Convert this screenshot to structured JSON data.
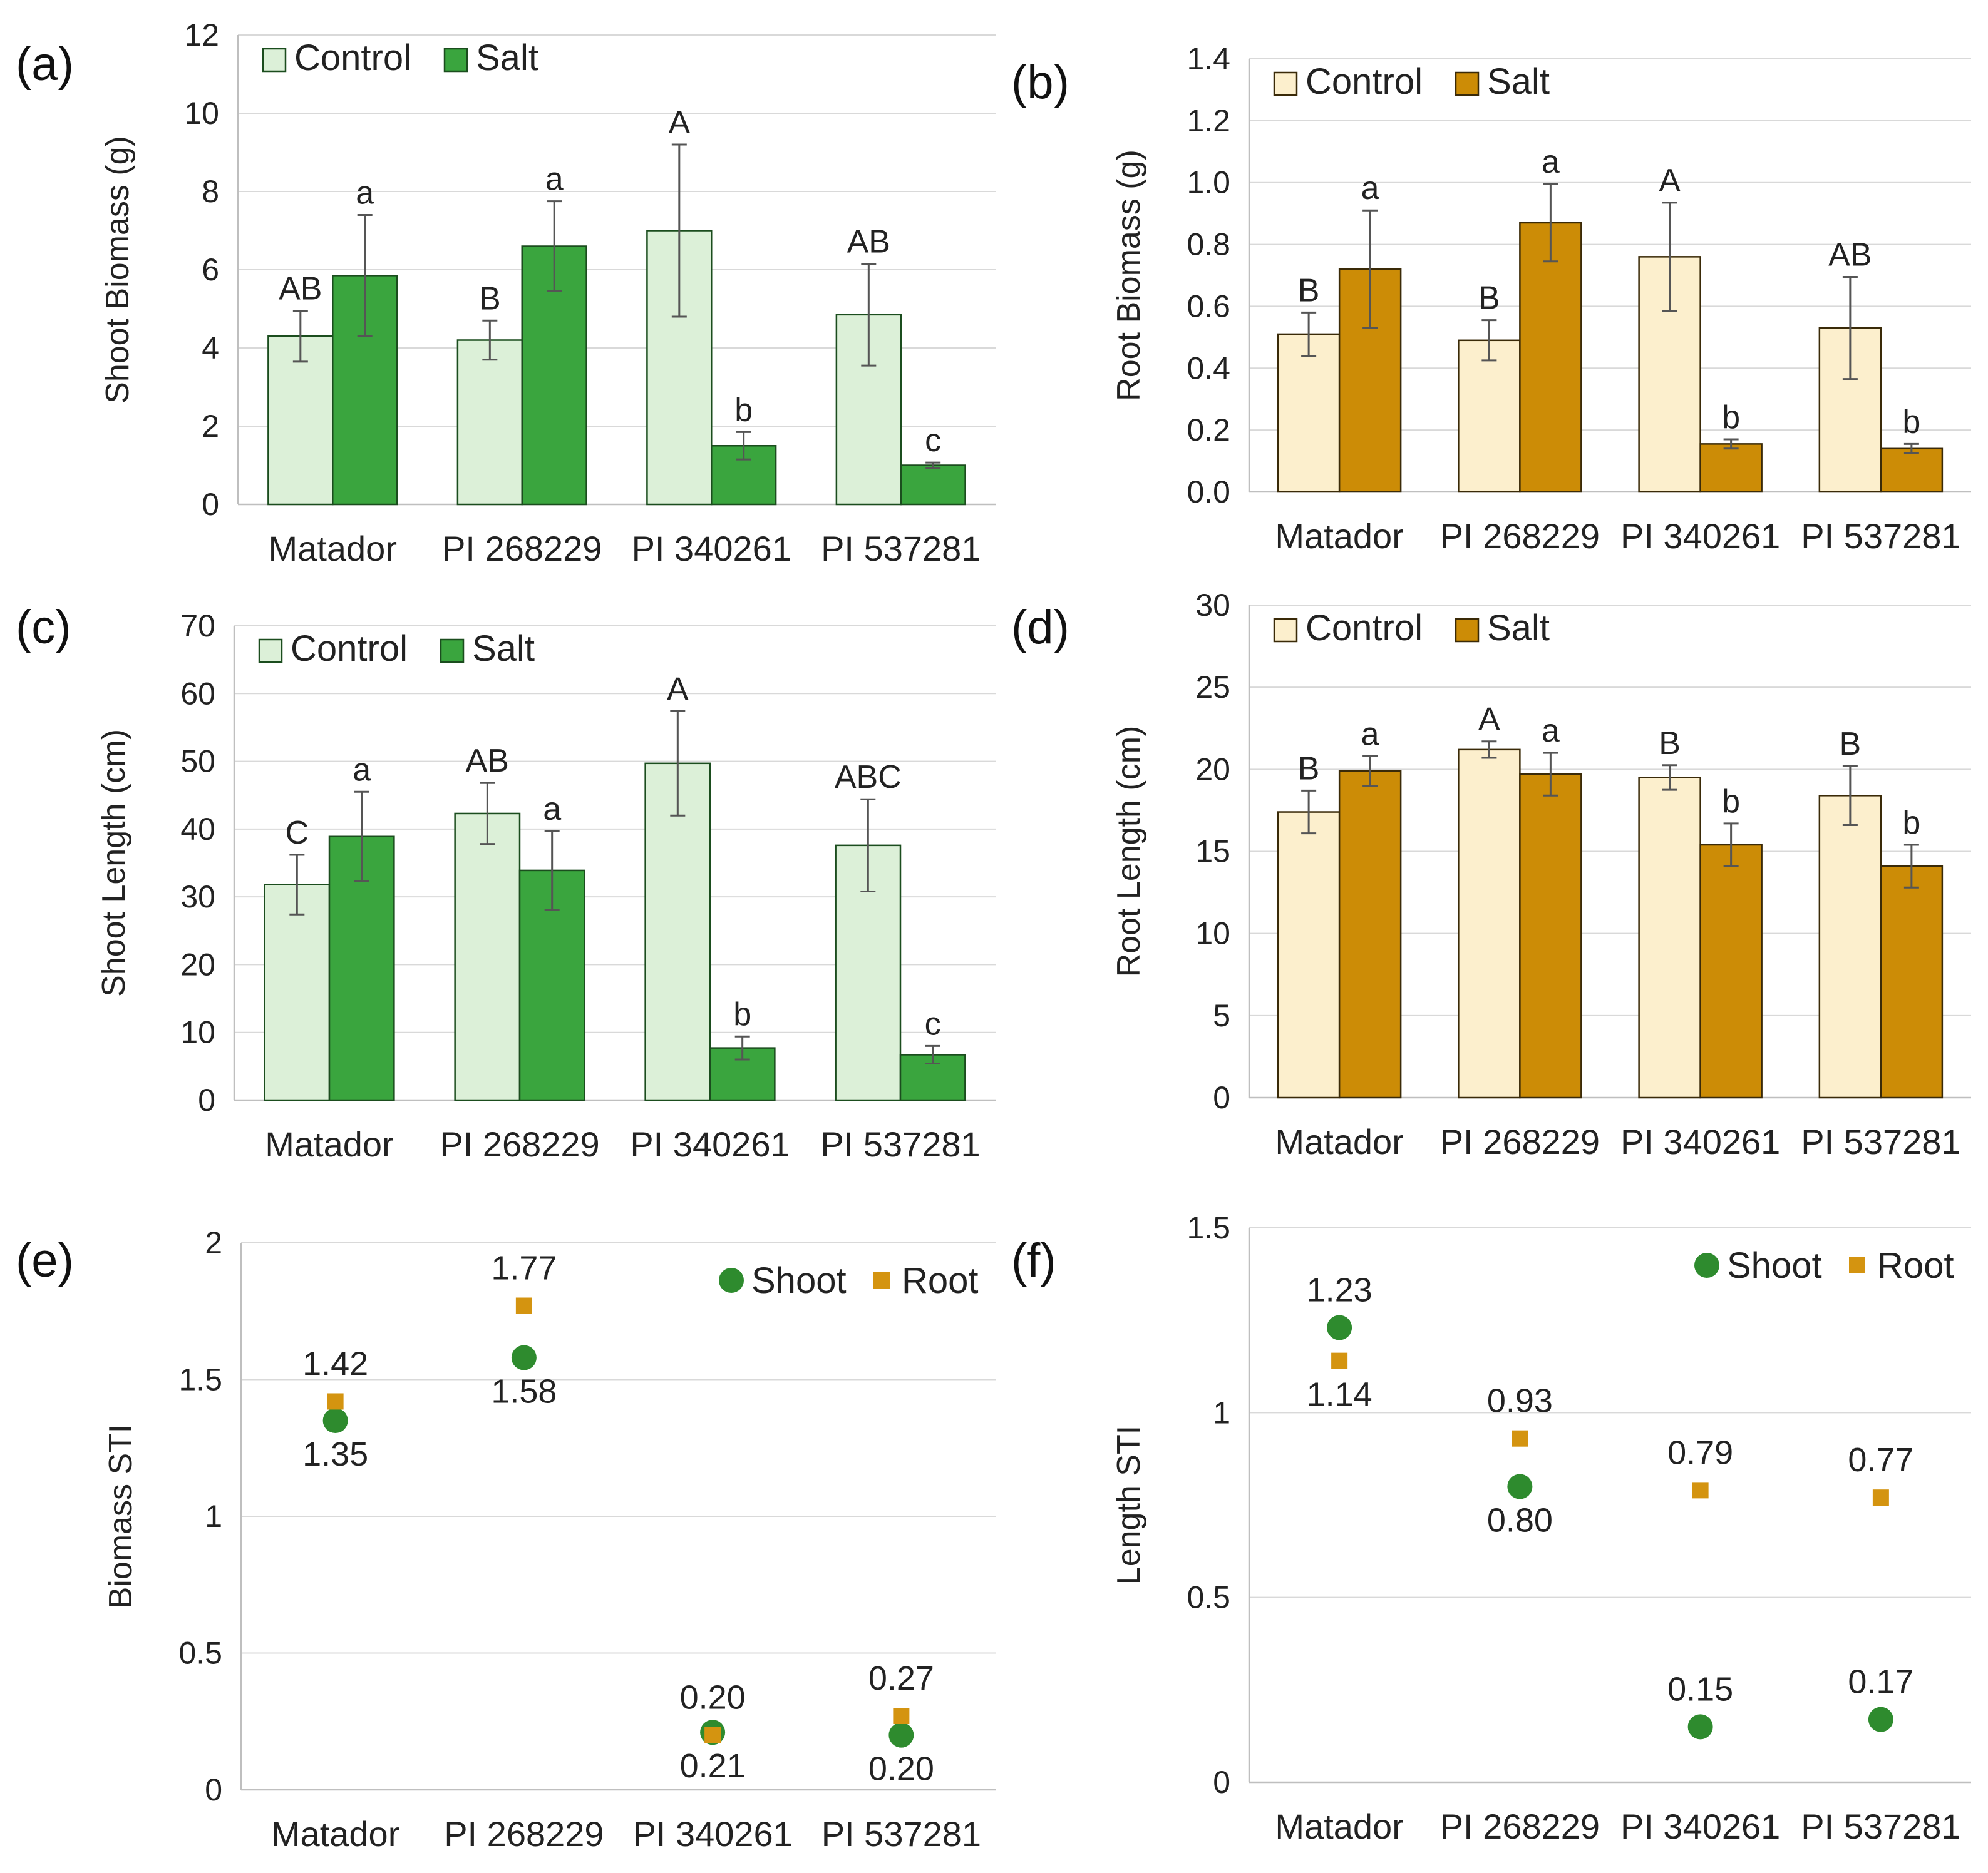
{
  "colors": {
    "shoot_control": "#dcf0d8",
    "shoot_salt": "#3aa53e",
    "shoot_border": "#1b4d1e",
    "root_control": "#fcefcd",
    "root_salt": "#cc8c06",
    "root_border": "#3a2a08",
    "shoot_marker": "#2e8b2e",
    "root_marker": "#d49410",
    "grid": "#d9d9d9",
    "error_bar": "#555555"
  },
  "chart_data": [
    {
      "id": "a",
      "panel_label": "(a)",
      "type": "bar",
      "theme": "shoot",
      "ylabel": "Shoot Biomass (g)",
      "ylim": [
        0,
        12
      ],
      "yticks": [
        "0",
        "2",
        "4",
        "6",
        "8",
        "10",
        "12"
      ],
      "ytick_values": [
        0,
        2,
        4,
        6,
        8,
        10,
        12
      ],
      "categories": [
        "Matador",
        "PI 268229",
        "PI 340261",
        "PI 537281"
      ],
      "legend_position": "top-left",
      "series": [
        {
          "name": "Control",
          "values": [
            4.3,
            4.2,
            7.0,
            4.85
          ],
          "errors": [
            0.65,
            0.5,
            2.2,
            1.3
          ],
          "letters": [
            "AB",
            "B",
            "A",
            "AB"
          ]
        },
        {
          "name": "Salt",
          "values": [
            5.85,
            6.6,
            1.5,
            1.0
          ],
          "errors": [
            1.55,
            1.15,
            0.35,
            0.07
          ],
          "letters": [
            "a",
            "a",
            "b",
            "c"
          ]
        }
      ]
    },
    {
      "id": "b",
      "panel_label": "(b)",
      "type": "bar",
      "theme": "root",
      "ylabel": "Root Biomass (g)",
      "ylim": [
        0,
        1.4
      ],
      "yticks": [
        "0.0",
        "0.2",
        "0.4",
        "0.6",
        "0.8",
        "1.0",
        "1.2",
        "1.4"
      ],
      "ytick_values": [
        0,
        0.2,
        0.4,
        0.6,
        0.8,
        1.0,
        1.2,
        1.4
      ],
      "categories": [
        "Matador",
        "PI 268229",
        "PI 340261",
        "PI 537281"
      ],
      "legend_position": "top-left",
      "series": [
        {
          "name": "Control",
          "values": [
            0.51,
            0.49,
            0.76,
            0.53
          ],
          "errors": [
            0.07,
            0.065,
            0.175,
            0.165
          ],
          "letters": [
            "B",
            "B",
            "A",
            "AB"
          ]
        },
        {
          "name": "Salt",
          "values": [
            0.72,
            0.87,
            0.155,
            0.14
          ],
          "errors": [
            0.19,
            0.125,
            0.015,
            0.015
          ],
          "letters": [
            "a",
            "a",
            "b",
            "b"
          ]
        }
      ]
    },
    {
      "id": "c",
      "panel_label": "(c)",
      "type": "bar",
      "theme": "shoot",
      "ylabel": "Shoot Length (cm)",
      "ylim": [
        0,
        70
      ],
      "yticks": [
        "0",
        "10",
        "20",
        "30",
        "40",
        "50",
        "60",
        "70"
      ],
      "ytick_values": [
        0,
        10,
        20,
        30,
        40,
        50,
        60,
        70
      ],
      "categories": [
        "Matador",
        "PI 268229",
        "PI 340261",
        "PI 537281"
      ],
      "legend_position": "top-left",
      "series": [
        {
          "name": "Control",
          "values": [
            31.8,
            42.3,
            49.7,
            37.6
          ],
          "errors": [
            4.4,
            4.5,
            7.7,
            6.8
          ],
          "letters": [
            "C",
            "AB",
            "A",
            "ABC"
          ]
        },
        {
          "name": "Salt",
          "values": [
            38.9,
            33.9,
            7.7,
            6.7
          ],
          "errors": [
            6.6,
            5.8,
            1.7,
            1.3
          ],
          "letters": [
            "a",
            "a",
            "b",
            "c"
          ]
        }
      ]
    },
    {
      "id": "d",
      "panel_label": "(d)",
      "type": "bar",
      "theme": "root",
      "ylabel": "Root Length (cm)",
      "ylim": [
        0,
        30
      ],
      "yticks": [
        "0",
        "5",
        "10",
        "15",
        "20",
        "25",
        "30"
      ],
      "ytick_values": [
        0,
        5,
        10,
        15,
        20,
        25,
        30
      ],
      "categories": [
        "Matador",
        "PI 268229",
        "PI 340261",
        "PI 537281"
      ],
      "legend_position": "top-left",
      "series": [
        {
          "name": "Control",
          "values": [
            17.4,
            21.2,
            19.5,
            18.4
          ],
          "errors": [
            1.3,
            0.5,
            0.75,
            1.8
          ],
          "letters": [
            "B",
            "A",
            "B",
            "B"
          ]
        },
        {
          "name": "Salt",
          "values": [
            19.9,
            19.7,
            15.4,
            14.1
          ],
          "errors": [
            0.9,
            1.3,
            1.3,
            1.3
          ],
          "letters": [
            "a",
            "a",
            "b",
            "b"
          ]
        }
      ]
    },
    {
      "id": "e",
      "panel_label": "(e)",
      "type": "scatter",
      "ylabel": "Biomass STI",
      "ylim": [
        0,
        2
      ],
      "yticks": [
        "0",
        "0.5",
        "1",
        "1.5",
        "2"
      ],
      "ytick_values": [
        0,
        0.5,
        1,
        1.5,
        2
      ],
      "categories": [
        "Matador",
        "PI 268229",
        "PI 340261",
        "PI 537281"
      ],
      "legend_position": "top-right",
      "series": [
        {
          "name": "Shoot",
          "marker": "circle",
          "values": [
            1.35,
            1.58,
            0.21,
            0.2
          ],
          "labels": [
            "1.35",
            "1.58",
            "0.21",
            "0.20"
          ],
          "label_side": [
            "below",
            "below",
            "below",
            "below"
          ]
        },
        {
          "name": "Root",
          "marker": "square",
          "values": [
            1.42,
            1.77,
            0.2,
            0.27
          ],
          "labels": [
            "1.42",
            "1.77",
            "0.20",
            "0.27"
          ],
          "label_side": [
            "above",
            "above",
            "above",
            "above"
          ]
        }
      ]
    },
    {
      "id": "f",
      "panel_label": "(f)",
      "type": "scatter",
      "ylabel": "Length STI",
      "ylim": [
        0,
        1.5
      ],
      "yticks": [
        "0",
        "0.5",
        "1",
        "1.5"
      ],
      "ytick_values": [
        0,
        0.5,
        1,
        1.5
      ],
      "categories": [
        "Matador",
        "PI 268229",
        "PI 340261",
        "PI 537281"
      ],
      "legend_position": "top-right",
      "series": [
        {
          "name": "Shoot",
          "marker": "circle",
          "values": [
            1.23,
            0.8,
            0.15,
            0.17
          ],
          "labels": [
            "1.23",
            "0.80",
            "0.15",
            "0.17"
          ],
          "label_side": [
            "above",
            "below",
            "above",
            "above"
          ]
        },
        {
          "name": "Root",
          "marker": "square",
          "values": [
            1.14,
            0.93,
            0.79,
            0.77
          ],
          "labels": [
            "1.14",
            "0.93",
            "0.79",
            "0.77"
          ],
          "label_side": [
            "below",
            "above",
            "above",
            "above"
          ]
        }
      ]
    }
  ]
}
